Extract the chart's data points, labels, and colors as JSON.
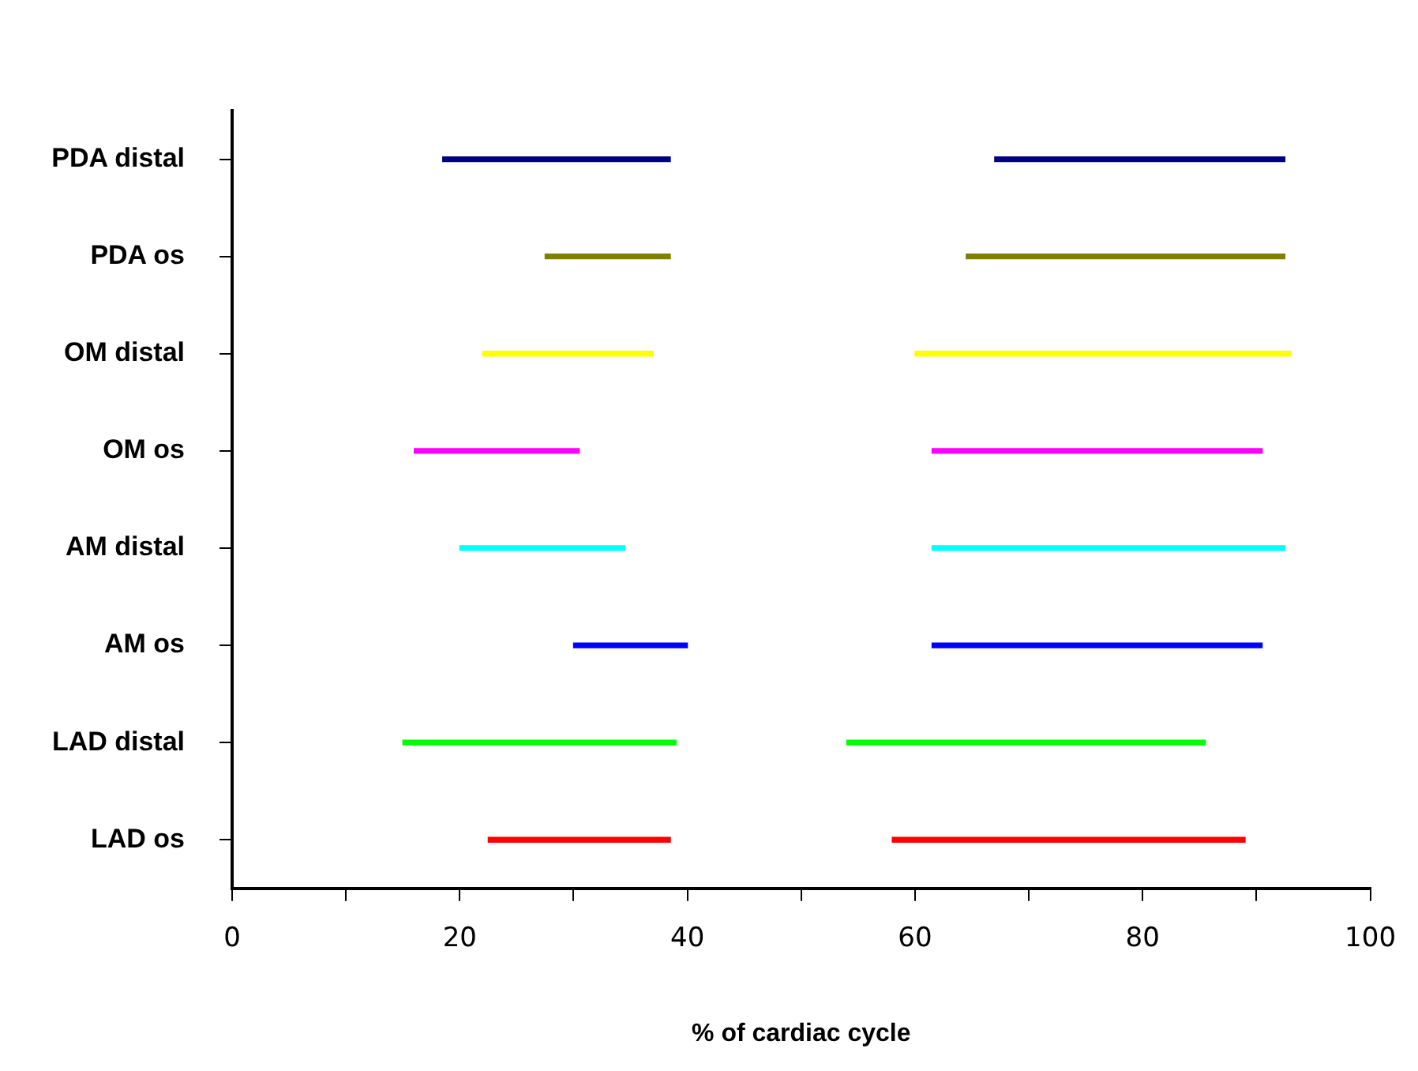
{
  "chart_data": {
    "type": "bar",
    "orientation": "horizontal",
    "xlabel": "% of cardiac cycle",
    "categories": [
      "PDA distal",
      "PDA os",
      "OM distal",
      "OM os",
      "AM distal",
      "AM os",
      "LAD distal",
      "LAD os"
    ],
    "series": [
      {
        "colors": [
          "#000080",
          "#808000",
          "#ffff00",
          "#ff00ff",
          "#00ffff",
          "#0000ff",
          "#00ff00",
          "#ff0000"
        ],
        "base": [
          18.5,
          27.5,
          22,
          16,
          20,
          30,
          15,
          22.5
        ],
        "values": [
          20,
          11,
          15,
          14.5,
          14.5,
          10,
          24,
          16
        ]
      },
      {
        "colors": [
          "#000080",
          "#808000",
          "#ffff00",
          "#ff00ff",
          "#00ffff",
          "#0000ff",
          "#00ff00",
          "#ff0000"
        ],
        "base": [
          67,
          64.5,
          60,
          61.5,
          61.5,
          61.5,
          54,
          58
        ],
        "values": [
          25.5,
          28,
          33,
          29,
          31,
          29,
          31.5,
          31
        ]
      }
    ],
    "xlim": [
      0,
      100
    ],
    "xticks": [
      0,
      {
        "value": 10,
        "label": null
      },
      20,
      {
        "value": 30,
        "label": null
      },
      40,
      {
        "value": 50,
        "label": null
      },
      60,
      {
        "value": 70,
        "label": null
      },
      80,
      {
        "value": 90,
        "label": null
      },
      100
    ],
    "grid": false,
    "legend": false
  }
}
